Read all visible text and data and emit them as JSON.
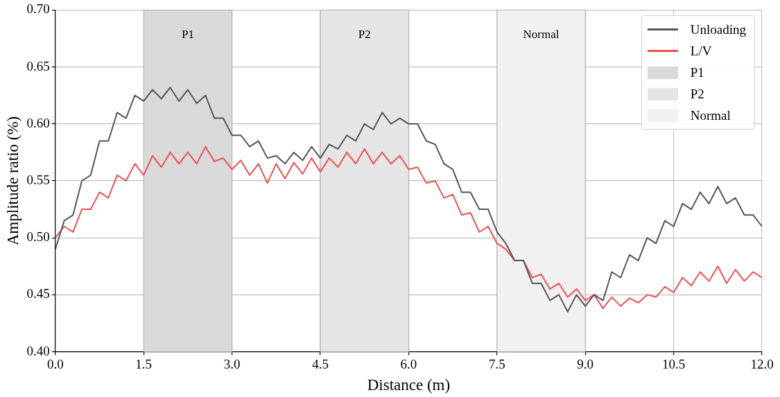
{
  "chart_data": {
    "type": "line",
    "xlabel": "Distance (m)",
    "ylabel": "Amplitude ratio (%)",
    "xlim": [
      0,
      12
    ],
    "xticks": [
      {
        "value": 0,
        "label": "0.0"
      },
      {
        "value": 1.5,
        "label": "1.5"
      },
      {
        "value": 3,
        "label": "3.0"
      },
      {
        "value": 4.5,
        "label": "4.5"
      },
      {
        "value": 6,
        "label": "6.0"
      },
      {
        "value": 7.5,
        "label": "7.5"
      },
      {
        "value": 9,
        "label": "9.0"
      },
      {
        "value": 10.5,
        "label": "10.5"
      },
      {
        "value": 12,
        "label": "12.0"
      }
    ],
    "ylim": [
      0.4,
      0.7
    ],
    "yticks": [
      {
        "value": 0.4,
        "label": "0.40"
      },
      {
        "value": 0.45,
        "label": "0.45"
      },
      {
        "value": 0.5,
        "label": "0.50"
      },
      {
        "value": 0.55,
        "label": "0.55"
      },
      {
        "value": 0.6,
        "label": "0.60"
      },
      {
        "value": 0.65,
        "label": "0.65"
      },
      {
        "value": 0.7,
        "label": "0.70"
      }
    ],
    "x": [
      0,
      0.15,
      0.3,
      0.45,
      0.6,
      0.75,
      0.9,
      1.05,
      1.2,
      1.35,
      1.5,
      1.65,
      1.8,
      1.95,
      2.1,
      2.25,
      2.4,
      2.55,
      2.7,
      2.85,
      3,
      3.15,
      3.3,
      3.45,
      3.6,
      3.75,
      3.9,
      4.05,
      4.2,
      4.35,
      4.5,
      4.65,
      4.8,
      4.95,
      5.1,
      5.25,
      5.4,
      5.55,
      5.7,
      5.85,
      6,
      6.15,
      6.3,
      6.45,
      6.6,
      6.75,
      6.9,
      7.05,
      7.2,
      7.35,
      7.5,
      7.65,
      7.8,
      7.95,
      8.1,
      8.25,
      8.4,
      8.55,
      8.7,
      8.85,
      9,
      9.15,
      9.3,
      9.45,
      9.6,
      9.75,
      9.9,
      10.05,
      10.2,
      10.35,
      10.5,
      10.65,
      10.8,
      10.95,
      11.1,
      11.25,
      11.4,
      11.55,
      11.7,
      11.85,
      12
    ],
    "series": [
      {
        "name": "Unloading",
        "color": "#555555",
        "values": [
          0.49,
          0.515,
          0.52,
          0.55,
          0.555,
          0.585,
          0.585,
          0.61,
          0.605,
          0.625,
          0.62,
          0.63,
          0.622,
          0.632,
          0.62,
          0.63,
          0.618,
          0.625,
          0.605,
          0.605,
          0.59,
          0.59,
          0.58,
          0.585,
          0.57,
          0.572,
          0.565,
          0.575,
          0.568,
          0.58,
          0.57,
          0.582,
          0.578,
          0.59,
          0.585,
          0.6,
          0.595,
          0.61,
          0.6,
          0.605,
          0.6,
          0.6,
          0.585,
          0.582,
          0.565,
          0.56,
          0.54,
          0.54,
          0.525,
          0.525,
          0.505,
          0.495,
          0.48,
          0.48,
          0.46,
          0.46,
          0.445,
          0.45,
          0.435,
          0.45,
          0.44,
          0.45,
          0.445,
          0.47,
          0.465,
          0.485,
          0.48,
          0.5,
          0.495,
          0.515,
          0.51,
          0.53,
          0.525,
          0.54,
          0.53,
          0.545,
          0.53,
          0.535,
          0.52,
          0.52,
          0.51
        ]
      },
      {
        "name": "L/V",
        "color": "#f05050",
        "values": [
          0.5,
          0.51,
          0.505,
          0.525,
          0.525,
          0.54,
          0.535,
          0.555,
          0.55,
          0.565,
          0.555,
          0.572,
          0.562,
          0.575,
          0.565,
          0.575,
          0.565,
          0.58,
          0.567,
          0.57,
          0.56,
          0.568,
          0.555,
          0.565,
          0.548,
          0.565,
          0.552,
          0.566,
          0.556,
          0.57,
          0.558,
          0.57,
          0.562,
          0.575,
          0.565,
          0.578,
          0.565,
          0.575,
          0.565,
          0.572,
          0.56,
          0.562,
          0.548,
          0.55,
          0.535,
          0.538,
          0.52,
          0.522,
          0.505,
          0.51,
          0.495,
          0.49,
          0.48,
          0.48,
          0.465,
          0.468,
          0.455,
          0.46,
          0.448,
          0.455,
          0.445,
          0.45,
          0.438,
          0.448,
          0.44,
          0.447,
          0.443,
          0.45,
          0.448,
          0.457,
          0.452,
          0.465,
          0.458,
          0.47,
          0.462,
          0.475,
          0.46,
          0.472,
          0.462,
          0.47,
          0.465
        ]
      }
    ],
    "bands": [
      {
        "axis": "x",
        "from": 1.5,
        "to": 3,
        "label": "P1",
        "color": "#d9d9d9"
      },
      {
        "axis": "x",
        "from": 4.5,
        "to": 6,
        "label": "P2",
        "color": "#e5e5e5"
      },
      {
        "axis": "x",
        "from": 7.5,
        "to": 9,
        "label": "Normal",
        "color": "#f1f1f1"
      }
    ],
    "grid": true,
    "legend": "top right",
    "marker": "none",
    "line_style": "solid"
  }
}
